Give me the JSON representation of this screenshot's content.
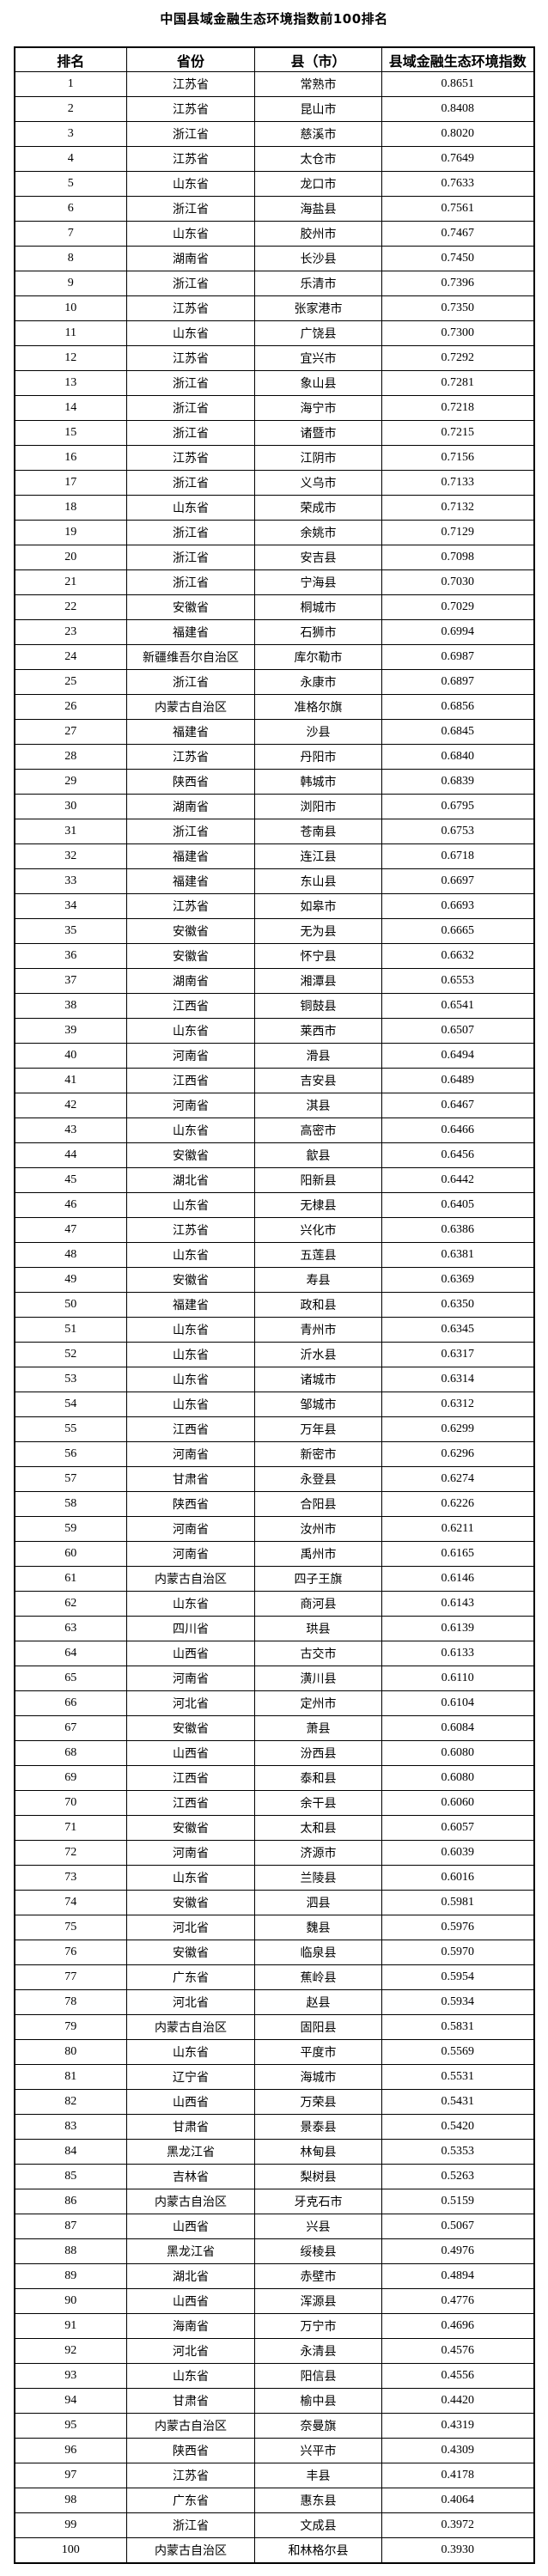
{
  "page": {
    "title": "中国县域金融生态环境指数前100排名"
  },
  "colors": {
    "text": "#000000",
    "background": "#ffffff",
    "border": "#000000"
  },
  "table": {
    "headers": [
      "排名",
      "省份",
      "县（市）",
      "县域金融生态环境指数"
    ],
    "rows": [
      [
        1,
        "江苏省",
        "常熟市",
        "0.8651"
      ],
      [
        2,
        "江苏省",
        "昆山市",
        "0.8408"
      ],
      [
        3,
        "浙江省",
        "慈溪市",
        "0.8020"
      ],
      [
        4,
        "江苏省",
        "太仓市",
        "0.7649"
      ],
      [
        5,
        "山东省",
        "龙口市",
        "0.7633"
      ],
      [
        6,
        "浙江省",
        "海盐县",
        "0.7561"
      ],
      [
        7,
        "山东省",
        "胶州市",
        "0.7467"
      ],
      [
        8,
        "湖南省",
        "长沙县",
        "0.7450"
      ],
      [
        9,
        "浙江省",
        "乐清市",
        "0.7396"
      ],
      [
        10,
        "江苏省",
        "张家港市",
        "0.7350"
      ],
      [
        11,
        "山东省",
        "广饶县",
        "0.7300"
      ],
      [
        12,
        "江苏省",
        "宜兴市",
        "0.7292"
      ],
      [
        13,
        "浙江省",
        "象山县",
        "0.7281"
      ],
      [
        14,
        "浙江省",
        "海宁市",
        "0.7218"
      ],
      [
        15,
        "浙江省",
        "诸暨市",
        "0.7215"
      ],
      [
        16,
        "江苏省",
        "江阴市",
        "0.7156"
      ],
      [
        17,
        "浙江省",
        "义乌市",
        "0.7133"
      ],
      [
        18,
        "山东省",
        "荣成市",
        "0.7132"
      ],
      [
        19,
        "浙江省",
        "余姚市",
        "0.7129"
      ],
      [
        20,
        "浙江省",
        "安吉县",
        "0.7098"
      ],
      [
        21,
        "浙江省",
        "宁海县",
        "0.7030"
      ],
      [
        22,
        "安徽省",
        "桐城市",
        "0.7029"
      ],
      [
        23,
        "福建省",
        "石狮市",
        "0.6994"
      ],
      [
        24,
        "新疆维吾尔自治区",
        "库尔勒市",
        "0.6987"
      ],
      [
        25,
        "浙江省",
        "永康市",
        "0.6897"
      ],
      [
        26,
        "内蒙古自治区",
        "准格尔旗",
        "0.6856"
      ],
      [
        27,
        "福建省",
        "沙县",
        "0.6845"
      ],
      [
        28,
        "江苏省",
        "丹阳市",
        "0.6840"
      ],
      [
        29,
        "陕西省",
        "韩城市",
        "0.6839"
      ],
      [
        30,
        "湖南省",
        "浏阳市",
        "0.6795"
      ],
      [
        31,
        "浙江省",
        "苍南县",
        "0.6753"
      ],
      [
        32,
        "福建省",
        "连江县",
        "0.6718"
      ],
      [
        33,
        "福建省",
        "东山县",
        "0.6697"
      ],
      [
        34,
        "江苏省",
        "如皋市",
        "0.6693"
      ],
      [
        35,
        "安徽省",
        "无为县",
        "0.6665"
      ],
      [
        36,
        "安徽省",
        "怀宁县",
        "0.6632"
      ],
      [
        37,
        "湖南省",
        "湘潭县",
        "0.6553"
      ],
      [
        38,
        "江西省",
        "铜鼓县",
        "0.6541"
      ],
      [
        39,
        "山东省",
        "莱西市",
        "0.6507"
      ],
      [
        40,
        "河南省",
        "滑县",
        "0.6494"
      ],
      [
        41,
        "江西省",
        "吉安县",
        "0.6489"
      ],
      [
        42,
        "河南省",
        "淇县",
        "0.6467"
      ],
      [
        43,
        "山东省",
        "高密市",
        "0.6466"
      ],
      [
        44,
        "安徽省",
        "歙县",
        "0.6456"
      ],
      [
        45,
        "湖北省",
        "阳新县",
        "0.6442"
      ],
      [
        46,
        "山东省",
        "无棣县",
        "0.6405"
      ],
      [
        47,
        "江苏省",
        "兴化市",
        "0.6386"
      ],
      [
        48,
        "山东省",
        "五莲县",
        "0.6381"
      ],
      [
        49,
        "安徽省",
        "寿县",
        "0.6369"
      ],
      [
        50,
        "福建省",
        "政和县",
        "0.6350"
      ],
      [
        51,
        "山东省",
        "青州市",
        "0.6345"
      ],
      [
        52,
        "山东省",
        "沂水县",
        "0.6317"
      ],
      [
        53,
        "山东省",
        "诸城市",
        "0.6314"
      ],
      [
        54,
        "山东省",
        "邹城市",
        "0.6312"
      ],
      [
        55,
        "江西省",
        "万年县",
        "0.6299"
      ],
      [
        56,
        "河南省",
        "新密市",
        "0.6296"
      ],
      [
        57,
        "甘肃省",
        "永登县",
        "0.6274"
      ],
      [
        58,
        "陕西省",
        "合阳县",
        "0.6226"
      ],
      [
        59,
        "河南省",
        "汝州市",
        "0.6211"
      ],
      [
        60,
        "河南省",
        "禹州市",
        "0.6165"
      ],
      [
        61,
        "内蒙古自治区",
        "四子王旗",
        "0.6146"
      ],
      [
        62,
        "山东省",
        "商河县",
        "0.6143"
      ],
      [
        63,
        "四川省",
        "珙县",
        "0.6139"
      ],
      [
        64,
        "山西省",
        "古交市",
        "0.6133"
      ],
      [
        65,
        "河南省",
        "潢川县",
        "0.6110"
      ],
      [
        66,
        "河北省",
        "定州市",
        "0.6104"
      ],
      [
        67,
        "安徽省",
        "萧县",
        "0.6084"
      ],
      [
        68,
        "山西省",
        "汾西县",
        "0.6080"
      ],
      [
        69,
        "江西省",
        "泰和县",
        "0.6080"
      ],
      [
        70,
        "江西省",
        "余干县",
        "0.6060"
      ],
      [
        71,
        "安徽省",
        "太和县",
        "0.6057"
      ],
      [
        72,
        "河南省",
        "济源市",
        "0.6039"
      ],
      [
        73,
        "山东省",
        "兰陵县",
        "0.6016"
      ],
      [
        74,
        "安徽省",
        "泗县",
        "0.5981"
      ],
      [
        75,
        "河北省",
        "魏县",
        "0.5976"
      ],
      [
        76,
        "安徽省",
        "临泉县",
        "0.5970"
      ],
      [
        77,
        "广东省",
        "蕉岭县",
        "0.5954"
      ],
      [
        78,
        "河北省",
        "赵县",
        "0.5934"
      ],
      [
        79,
        "内蒙古自治区",
        "固阳县",
        "0.5831"
      ],
      [
        80,
        "山东省",
        "平度市",
        "0.5569"
      ],
      [
        81,
        "辽宁省",
        "海城市",
        "0.5531"
      ],
      [
        82,
        "山西省",
        "万荣县",
        "0.5431"
      ],
      [
        83,
        "甘肃省",
        "景泰县",
        "0.5420"
      ],
      [
        84,
        "黑龙江省",
        "林甸县",
        "0.5353"
      ],
      [
        85,
        "吉林省",
        "梨树县",
        "0.5263"
      ],
      [
        86,
        "内蒙古自治区",
        "牙克石市",
        "0.5159"
      ],
      [
        87,
        "山西省",
        "兴县",
        "0.5067"
      ],
      [
        88,
        "黑龙江省",
        "绥棱县",
        "0.4976"
      ],
      [
        89,
        "湖北省",
        "赤壁市",
        "0.4894"
      ],
      [
        90,
        "山西省",
        "浑源县",
        "0.4776"
      ],
      [
        91,
        "海南省",
        "万宁市",
        "0.4696"
      ],
      [
        92,
        "河北省",
        "永清县",
        "0.4576"
      ],
      [
        93,
        "山东省",
        "阳信县",
        "0.4556"
      ],
      [
        94,
        "甘肃省",
        "榆中县",
        "0.4420"
      ],
      [
        95,
        "内蒙古自治区",
        "奈曼旗",
        "0.4319"
      ],
      [
        96,
        "陕西省",
        "兴平市",
        "0.4309"
      ],
      [
        97,
        "江苏省",
        "丰县",
        "0.4178"
      ],
      [
        98,
        "广东省",
        "惠东县",
        "0.4064"
      ],
      [
        99,
        "浙江省",
        "文成县",
        "0.3972"
      ],
      [
        100,
        "内蒙古自治区",
        "和林格尔县",
        "0.3930"
      ]
    ]
  }
}
